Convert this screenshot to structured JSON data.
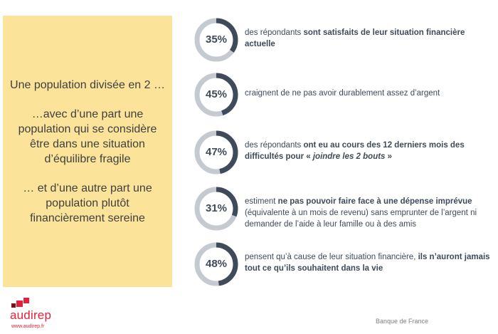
{
  "panel": {
    "line1": "Une population divisée en 2 …",
    "line2": "…avec d’une part une population qui se considère être dans une situation d’équilibre fragile",
    "line3": "… et d’une autre part une population plutôt financièrement sereine"
  },
  "colors": {
    "accent": "#3f4a5a",
    "track": "#c5c9d0",
    "panel": "#fbe49a",
    "brand": "#e0223d"
  },
  "chart_data": {
    "type": "pie",
    "variant": "donut",
    "items": [
      {
        "value": 35,
        "label": "35%",
        "text": [
          {
            "t": "des répondants ",
            "b": false,
            "i": false
          },
          {
            "t": "sont satisfaits de leur situation financière actuelle",
            "b": true,
            "i": false
          }
        ]
      },
      {
        "value": 45,
        "label": "45%",
        "text": [
          {
            "t": "craignent de ne pas avoir durablement assez d’argent",
            "b": false,
            "i": false
          }
        ]
      },
      {
        "value": 47,
        "label": "47%",
        "text": [
          {
            "t": "des répondants ",
            "b": false,
            "i": false
          },
          {
            "t": "ont eu au cours des 12 derniers mois des difficultés pour « ",
            "b": true,
            "i": false
          },
          {
            "t": "joindre les 2 bouts",
            "b": true,
            "i": true
          },
          {
            "t": " »",
            "b": true,
            "i": false
          }
        ]
      },
      {
        "value": 31,
        "label": "31%",
        "text": [
          {
            "t": "estiment ",
            "b": false,
            "i": false
          },
          {
            "t": "ne pas pouvoir faire face à une dépense imprévue",
            "b": true,
            "i": false
          },
          {
            "t": " (équivalente à un mois de revenu) sans emprunter de l’argent ni demander de l’aide à leur famille ou à des amis",
            "b": false,
            "i": false
          }
        ]
      },
      {
        "value": 48,
        "label": "48%",
        "text": [
          {
            "t": "pensent qu’à cause de leur situation financière, ",
            "b": false,
            "i": false
          },
          {
            "t": "ils n’auront jamais tout ce qu’ils souhaitent dans la vie",
            "b": true,
            "i": false
          }
        ]
      }
    ]
  },
  "footer": {
    "brand": "audirep",
    "url": "www.audirep.fr",
    "source": "Banque de France"
  }
}
